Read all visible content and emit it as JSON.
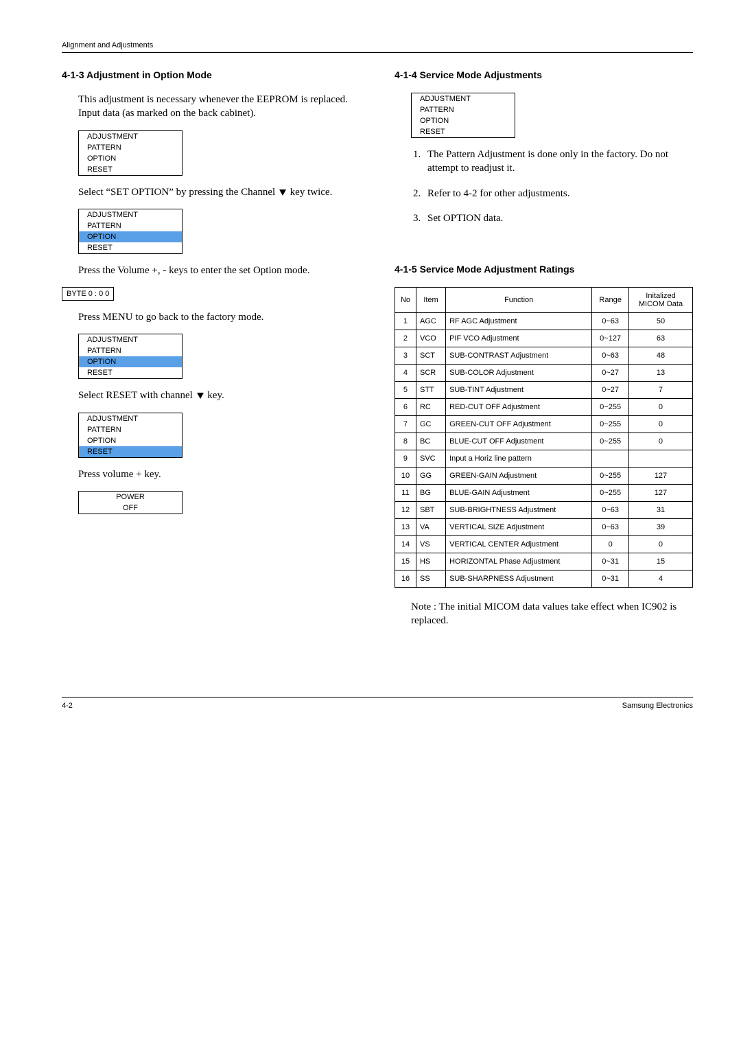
{
  "header": {
    "text": "Alignment and Adjustments"
  },
  "left": {
    "title": "4-1-3 Adjustment in Option Mode",
    "p1": "This adjustment is necessary whenever the EEPROM is replaced.  Input data (as marked on the back cabinet).",
    "menu1": {
      "items": [
        "ADJUSTMENT",
        "PATTERN",
        "OPTION",
        "RESET"
      ],
      "highlight": -1
    },
    "p2a": "Select “SET OPTION” by pressing the Channel ",
    "p2b": " key twice.",
    "menu2": {
      "items": [
        "ADJUSTMENT",
        "PATTERN",
        "OPTION",
        "RESET"
      ],
      "highlight": 2
    },
    "p3": "Press the Volume  +, - keys to enter the set Option mode.",
    "byte": "BYTE  0 : 0 0",
    "p4": "Press MENU to go back to the factory mode.",
    "menu3": {
      "items": [
        "ADJUSTMENT",
        "PATTERN",
        "OPTION",
        "RESET"
      ],
      "highlight": 2
    },
    "p5a": "Select RESET with channel ",
    "p5b": " key.",
    "menu4": {
      "items": [
        "ADJUSTMENT",
        "PATTERN",
        "OPTION",
        "RESET"
      ],
      "highlight": 3
    },
    "p6": "Press volume + key.",
    "power": {
      "line1": "POWER",
      "line2": "OFF"
    }
  },
  "right": {
    "title1": "4-1-4  Service Mode Adjustments",
    "menu": {
      "items": [
        "ADJUSTMENT",
        "PATTERN",
        "OPTION",
        "RESET"
      ],
      "highlight": -1
    },
    "list": [
      "The Pattern Adjustment is done only in the factory.  Do not attempt to readjust it.",
      "Refer to 4-2 for other adjustments.",
      "Set OPTION data."
    ],
    "title2": "4-1-5 Service Mode Adjustment Ratings",
    "table": {
      "headers": [
        "No",
        "Item",
        "Function",
        "Range",
        "Initalized MICOM Data"
      ],
      "rows": [
        [
          "1",
          "AGC",
          "RF AGC Adjustment",
          "0~63",
          "50"
        ],
        [
          "2",
          "VCO",
          "PIF VCO Adjustment",
          "0~127",
          "63"
        ],
        [
          "3",
          "SCT",
          "SUB-CONTRAST Adjustment",
          "0~63",
          "48"
        ],
        [
          "4",
          "SCR",
          "SUB-COLOR Adjustment",
          "0~27",
          "13"
        ],
        [
          "5",
          "STT",
          "SUB-TINT Adjustment",
          "0~27",
          "7"
        ],
        [
          "6",
          "RC",
          "RED-CUT OFF Adjustment",
          "0~255",
          "0"
        ],
        [
          "7",
          "GC",
          "GREEN-CUT OFF Adjustment",
          "0~255",
          "0"
        ],
        [
          "8",
          "BC",
          "BLUE-CUT OFF Adjustment",
          "0~255",
          "0"
        ],
        [
          "9",
          "SVC",
          "Input a Horiz line pattern",
          "",
          ""
        ],
        [
          "10",
          "GG",
          "GREEN-GAIN Adjustment",
          "0~255",
          "127"
        ],
        [
          "11",
          "BG",
          "BLUE-GAIN Adjustment",
          "0~255",
          "127"
        ],
        [
          "12",
          "SBT",
          "SUB-BRIGHTNESS Adjustment",
          "0~63",
          "31"
        ],
        [
          "13",
          "VA",
          "VERTICAL SIZE Adjustment",
          "0~63",
          "39"
        ],
        [
          "14",
          "VS",
          "VERTICAL CENTER Adjustment",
          "0",
          "0"
        ],
        [
          "15",
          "HS",
          "HORIZONTAL Phase Adjustment",
          "0~31",
          "15"
        ],
        [
          "16",
          "SS",
          "SUB-SHARPNESS Adjustment",
          "0~31",
          "4"
        ]
      ]
    },
    "note": "Note : The initial MICOM data values take effect when IC902 is replaced."
  },
  "footer": {
    "left": "4-2",
    "right": "Samsung Electronics"
  }
}
